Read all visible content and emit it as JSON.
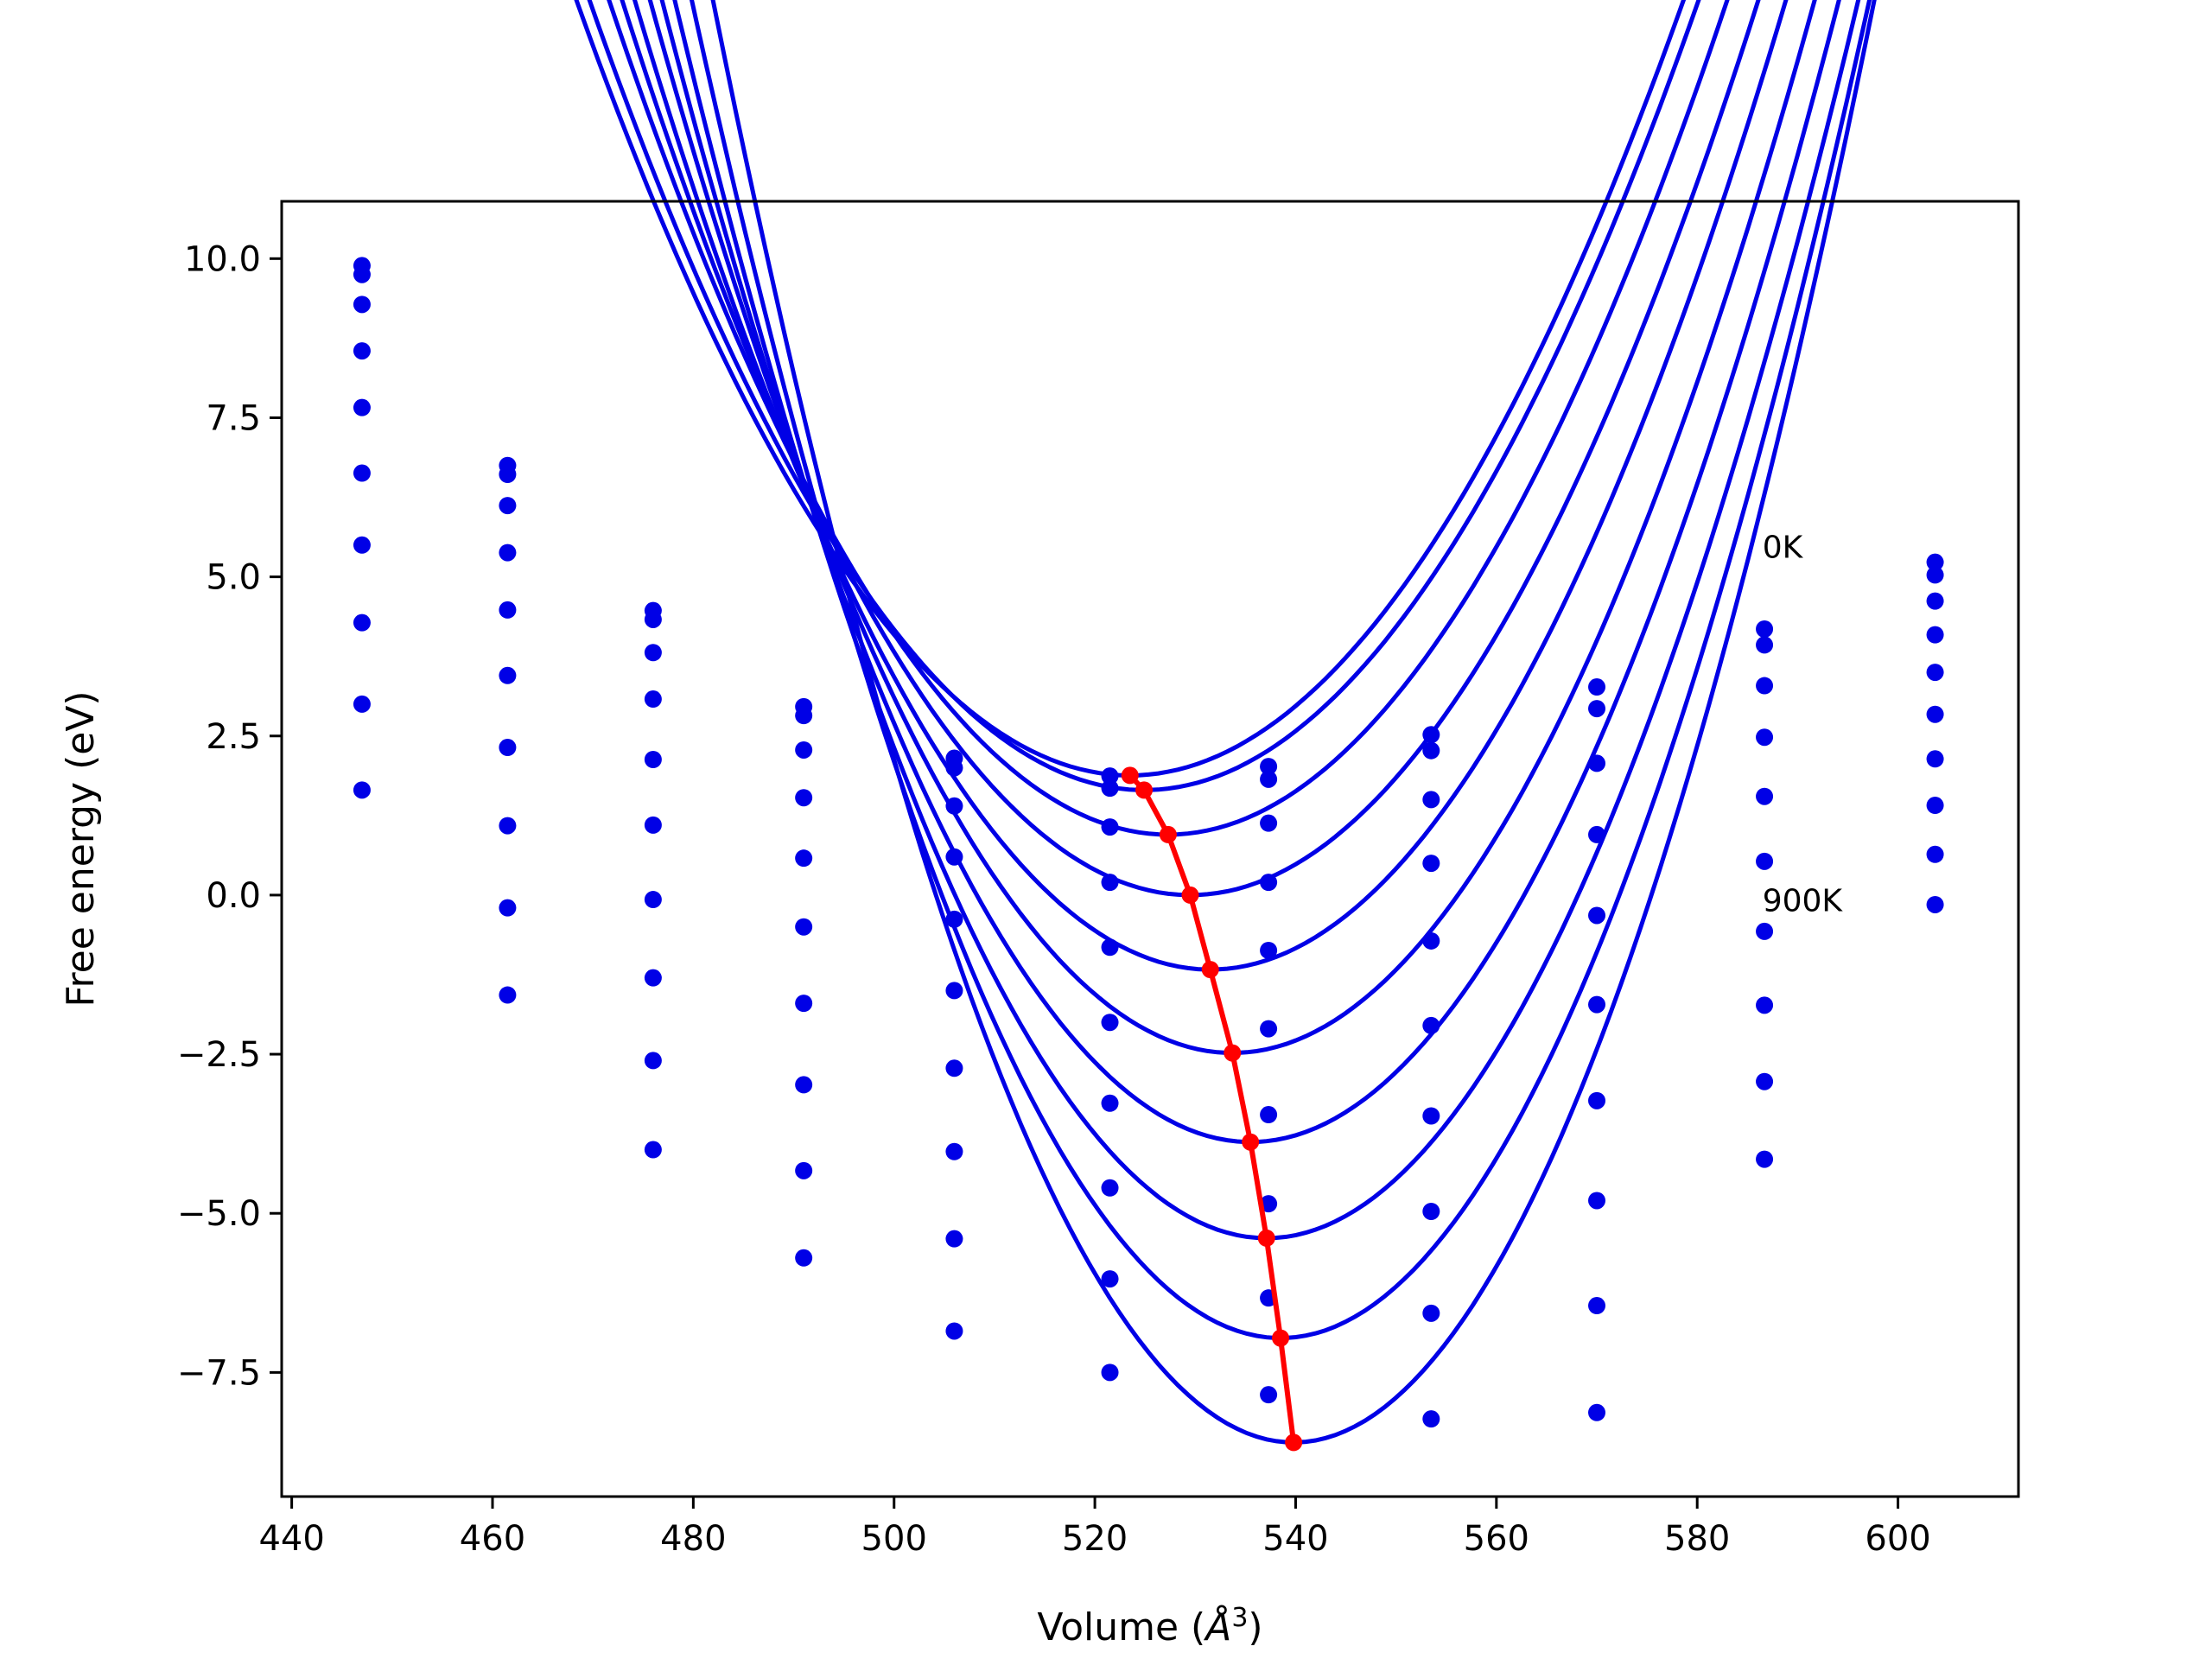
{
  "chart_data": {
    "type": "line",
    "xlabel_prefix": "Volume (",
    "xlabel_unit": "Å",
    "xlabel_exp": "3",
    "xlabel_suffix": ")",
    "ylabel": "Free energy (eV)",
    "xlim": [
      439,
      612
    ],
    "ylim": [
      -9.45,
      10.9
    ],
    "xticks": [
      440,
      460,
      480,
      500,
      520,
      540,
      560,
      580,
      600
    ],
    "xtick_labels": [
      "440",
      "460",
      "480",
      "500",
      "520",
      "540",
      "560",
      "580",
      "600"
    ],
    "yticks": [
      10.0,
      7.5,
      5.0,
      2.5,
      0.0,
      -2.5,
      -5.0,
      -7.5
    ],
    "ytick_labels": [
      "10.0",
      "7.5",
      "5.0",
      "2.5",
      "0.0",
      "−2.5",
      "−5.0",
      "−7.5"
    ],
    "annotations": [
      {
        "text": "0K",
        "x": 586.5,
        "y": 5.3
      },
      {
        "text": "900K",
        "x": 586.5,
        "y": -0.25
      }
    ],
    "volumes": [
      447,
      461.5,
      476,
      491,
      506,
      521.5,
      537.3,
      553.5,
      570,
      586.7,
      603.7
    ],
    "series": [
      {
        "fit": {
          "a": 0.004006,
          "v0": 523.5,
          "e0": 1.88
        },
        "points": [
          9.89,
          6.75,
          4.47,
          2.96,
          2.15,
          1.87,
          2.02,
          2.52,
          3.27,
          4.18,
          5.23
        ]
      },
      {
        "fit": {
          "a": 0.004067,
          "v0": 524.9,
          "e0": 1.65
        },
        "points": [
          9.75,
          6.61,
          4.33,
          2.82,
          2.0,
          1.68,
          1.82,
          2.27,
          2.93,
          3.93,
          5.03
        ]
      },
      {
        "fit": {
          "a": 0.004227,
          "v0": 527.3,
          "e0": 0.95
        },
        "points": [
          9.28,
          6.12,
          3.81,
          2.28,
          1.4,
          1.07,
          1.13,
          1.5,
          2.07,
          3.29,
          4.62
        ]
      },
      {
        "fit": {
          "a": 0.00439,
          "v0": 529.5,
          "e0": 0.0
        },
        "points": [
          8.55,
          5.38,
          3.08,
          1.53,
          0.6,
          0.2,
          0.2,
          0.5,
          0.95,
          2.48,
          4.09
        ]
      },
      {
        "fit": {
          "a": 0.004633,
          "v0": 531.5,
          "e0": -1.17
        },
        "points": [
          7.66,
          4.48,
          2.13,
          0.58,
          -0.38,
          -0.82,
          -0.87,
          -0.72,
          -0.32,
          1.55,
          3.5
        ]
      },
      {
        "fit": {
          "a": 0.004916,
          "v0": 533.7,
          "e0": -2.48
        },
        "points": [
          6.63,
          3.45,
          1.1,
          -0.5,
          -1.5,
          -2.0,
          -2.1,
          -2.05,
          -1.72,
          0.53,
          2.84
        ]
      },
      {
        "fit": {
          "a": 0.005221,
          "v0": 535.5,
          "e0": -3.88
        },
        "points": [
          5.5,
          2.32,
          -0.07,
          -1.7,
          -2.72,
          -3.27,
          -3.45,
          -3.47,
          -3.23,
          -0.57,
          2.14
        ]
      },
      {
        "fit": {
          "a": 0.005597,
          "v0": 537.1,
          "e0": -5.39
        },
        "points": [
          4.28,
          1.09,
          -1.3,
          -2.98,
          -4.03,
          -4.6,
          -4.85,
          -4.97,
          -4.8,
          -1.73,
          1.41
        ]
      },
      {
        "fit": {
          "a": 0.00611,
          "v0": 538.5,
          "e0": -6.96
        },
        "points": [
          3.0,
          -0.2,
          -2.6,
          -4.33,
          -5.4,
          -6.03,
          -6.33,
          -6.57,
          -6.45,
          -2.93,
          0.64
        ]
      },
      {
        "fit": {
          "a": 0.006773,
          "v0": 539.8,
          "e0": -8.6
        },
        "points": [
          1.65,
          -1.57,
          -4.0,
          -5.7,
          -6.85,
          -7.5,
          -7.85,
          -8.23,
          -8.13,
          -4.15,
          -0.15
        ]
      }
    ],
    "minima_curve": {
      "x": [
        523.5,
        524.9,
        527.3,
        529.5,
        531.5,
        533.7,
        535.5,
        537.1,
        538.5,
        539.8
      ],
      "y": [
        1.88,
        1.65,
        0.95,
        0.0,
        -1.17,
        -2.48,
        -3.88,
        -5.39,
        -6.96,
        -8.6
      ]
    },
    "colors": {
      "fit": "#0000e6",
      "points": "#0000e6",
      "minima": "#ff0000"
    }
  }
}
